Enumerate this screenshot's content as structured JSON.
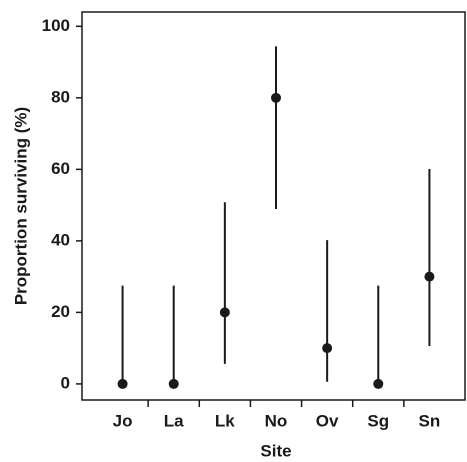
{
  "chart_data": {
    "type": "pointrange",
    "x_label": "Site",
    "y_label": "Proportion surviving (%)",
    "categories": [
      "Jo",
      "La",
      "Lk",
      "No",
      "Ov",
      "Sg",
      "Sn"
    ],
    "values": [
      0,
      0,
      20,
      80,
      10,
      0,
      30
    ],
    "lower": [
      0,
      0,
      5.6,
      48.9,
      0.6,
      0,
      10.6
    ],
    "upper": [
      27.5,
      27.5,
      50.8,
      94.4,
      40.2,
      27.5,
      60.1
    ],
    "color": "#1a1a1a",
    "ylim": [
      -4.5,
      104
    ],
    "yticks": [
      0,
      20,
      40,
      60,
      80,
      100
    ]
  }
}
